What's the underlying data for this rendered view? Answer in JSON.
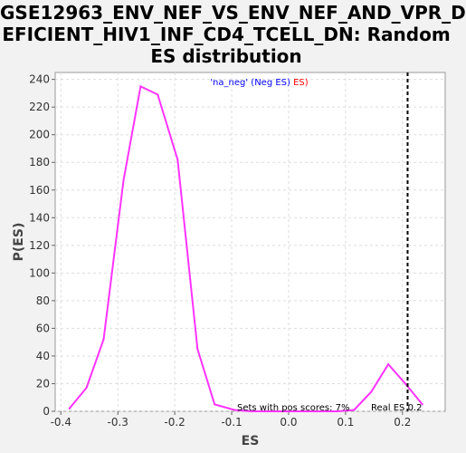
{
  "chart_data": {
    "type": "line",
    "title": "GSE12963_ENV_NEF_VS_ENV_NEF_AND_VPR_D\nEFICIENT_HIV1_INF_CD4_TCELL_DN: Random\nES distribution",
    "xlabel": "ES",
    "ylabel": "P(ES)",
    "xlim": [
      -0.41,
      0.275
    ],
    "ylim": [
      0,
      245
    ],
    "xticks": [
      "-0.4",
      "-0.3",
      "-0.2",
      "-0.1",
      "0.0",
      "0.1",
      "0.2"
    ],
    "xtick_values": [
      -0.4,
      -0.3,
      -0.2,
      -0.1,
      0.0,
      0.1,
      0.2
    ],
    "yticks": [
      "0",
      "20",
      "40",
      "60",
      "80",
      "100",
      "120",
      "140",
      "160",
      "180",
      "200",
      "220",
      "240"
    ],
    "ytick_values": [
      0,
      20,
      40,
      60,
      80,
      100,
      120,
      140,
      160,
      180,
      200,
      220,
      240
    ],
    "grid": true,
    "legend": {
      "placement": "top-center",
      "prefix": "'na_neg' (Neg ES)",
      "suffix": " ES)",
      "prefix_color": "#0000ff",
      "suffix_color": "#ff0000"
    },
    "series": [
      {
        "color": "#ff33ff",
        "x": [
          -0.385,
          -0.355,
          -0.325,
          -0.29,
          -0.26,
          -0.23,
          -0.195,
          -0.16,
          -0.13,
          -0.095,
          -0.065,
          -0.035,
          -0.005,
          0.025,
          0.055,
          0.085,
          0.115,
          0.145,
          0.175,
          0.205,
          0.235
        ],
        "y": [
          2,
          17,
          52,
          167,
          235,
          229,
          182,
          45,
          5,
          1,
          0,
          0,
          0,
          0,
          0,
          0,
          1,
          14,
          34,
          20,
          5
        ]
      }
    ],
    "real_es": {
      "x": 0.209,
      "label": "Real ES 0.2"
    },
    "annotation": "Sets with pos scores: 7%"
  }
}
